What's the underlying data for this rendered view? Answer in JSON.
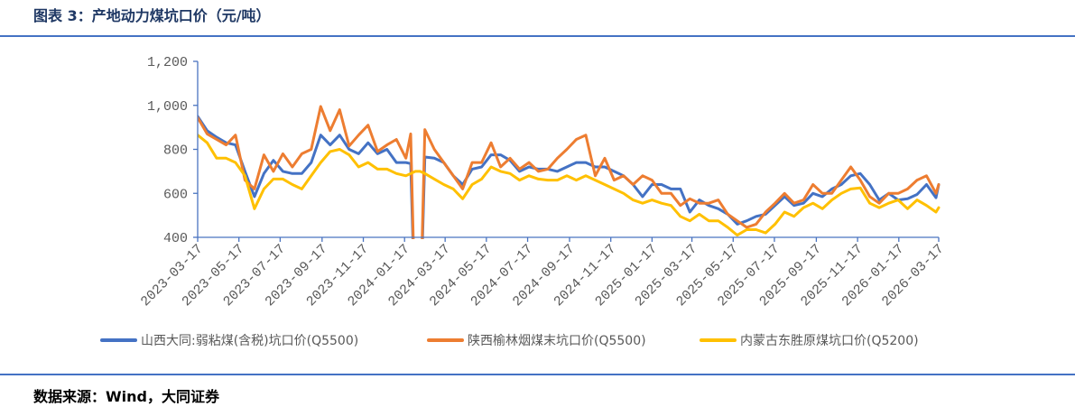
{
  "footer": {
    "source": "数据来源：Wind，大同证券"
  },
  "colors": {
    "title": "#1f3864",
    "rule": "#4472c4",
    "axis": "#4a74c0",
    "tick_text": "#595959"
  },
  "chart_data": {
    "type": "line",
    "title": "图表 3：产地动力煤坑口价（元/吨）",
    "xlabel": "",
    "ylabel": "",
    "ylim": [
      400,
      1200
    ],
    "y_ticks": [
      400,
      600,
      800,
      1000,
      1200
    ],
    "y_tick_labels": [
      "400",
      "600",
      "800",
      "1,000",
      "1,200"
    ],
    "x_range": [
      "2023-03-17",
      "2026-03-17"
    ],
    "x_tick_labels": [
      "2023-03-17",
      "2023-05-17",
      "2023-07-17",
      "2023-09-17",
      "2023-11-17",
      "2024-01-17",
      "2024-03-17",
      "2024-05-17",
      "2024-07-17",
      "2024-09-17",
      "2024-11-17",
      "2025-01-17",
      "2025-03-17",
      "2025-05-17",
      "2025-07-17",
      "2025-09-17",
      "2025-11-17",
      "2026-01-17",
      "2026-03-17"
    ],
    "grid": false,
    "legend_position": "bottom",
    "x": [
      "2023-03-17",
      "2023-03-31",
      "2023-04-14",
      "2023-04-28",
      "2023-05-12",
      "2023-05-26",
      "2023-06-09",
      "2023-06-23",
      "2023-07-07",
      "2023-07-21",
      "2023-08-04",
      "2023-08-18",
      "2023-09-01",
      "2023-09-15",
      "2023-09-29",
      "2023-10-13",
      "2023-10-27",
      "2023-11-10",
      "2023-11-24",
      "2023-12-08",
      "2023-12-22",
      "2024-01-05",
      "2024-01-19",
      "2024-01-26",
      "2024-02-02",
      "2024-02-09",
      "2024-02-16",
      "2024-03-01",
      "2024-03-15",
      "2024-03-29",
      "2024-04-12",
      "2024-04-26",
      "2024-05-10",
      "2024-05-24",
      "2024-06-07",
      "2024-06-21",
      "2024-07-05",
      "2024-07-19",
      "2024-08-02",
      "2024-08-16",
      "2024-08-30",
      "2024-09-13",
      "2024-09-27",
      "2024-10-11",
      "2024-10-25",
      "2024-11-08",
      "2024-11-22",
      "2024-12-06",
      "2024-12-20",
      "2025-01-03",
      "2025-01-17",
      "2025-01-31",
      "2025-02-14",
      "2025-02-28",
      "2025-03-14",
      "2025-03-28",
      "2025-04-11",
      "2025-04-25",
      "2025-05-09",
      "2025-05-23",
      "2025-06-06",
      "2025-06-20",
      "2025-07-04",
      "2025-07-18",
      "2025-08-01",
      "2025-08-15",
      "2025-08-29",
      "2025-09-12",
      "2025-09-26",
      "2025-10-10",
      "2025-10-24",
      "2025-11-07",
      "2025-11-21",
      "2025-12-05",
      "2025-12-19",
      "2026-01-02",
      "2026-01-16",
      "2026-01-30",
      "2026-02-13",
      "2026-02-27",
      "2026-03-13",
      "2026-03-17"
    ],
    "series": [
      {
        "name": "山西大同:弱粘煤(含税)坑口价(Q5500)",
        "color": "#4472c4",
        "values": [
          950,
          885,
          855,
          830,
          820,
          700,
          585,
          690,
          750,
          700,
          690,
          690,
          740,
          865,
          820,
          865,
          800,
          780,
          830,
          780,
          800,
          740,
          740,
          735,
          0,
          0,
          765,
          760,
          740,
          680,
          640,
          710,
          720,
          775,
          775,
          750,
          700,
          720,
          710,
          710,
          700,
          720,
          740,
          740,
          720,
          720,
          700,
          680,
          640,
          585,
          640,
          640,
          620,
          620,
          515,
          570,
          545,
          530,
          505,
          460,
          475,
          495,
          505,
          545,
          585,
          545,
          555,
          600,
          585,
          620,
          640,
          680,
          690,
          640,
          570,
          600,
          570,
          575,
          595,
          640,
          580,
          640
        ]
      },
      {
        "name": "陕西榆林烟煤末坑口价(Q5500)",
        "color": "#ed7d31",
        "values": [
          945,
          870,
          845,
          820,
          865,
          660,
          620,
          775,
          700,
          780,
          720,
          780,
          800,
          995,
          885,
          980,
          815,
          865,
          910,
          790,
          820,
          845,
          760,
          870,
          0,
          0,
          890,
          800,
          740,
          680,
          620,
          740,
          740,
          830,
          720,
          760,
          710,
          740,
          700,
          710,
          760,
          800,
          845,
          865,
          680,
          760,
          660,
          680,
          640,
          680,
          660,
          600,
          600,
          545,
          575,
          555,
          555,
          570,
          505,
          475,
          445,
          460,
          515,
          555,
          600,
          555,
          570,
          640,
          600,
          600,
          660,
          720,
          660,
          585,
          555,
          600,
          600,
          620,
          660,
          680,
          600,
          640
        ]
      },
      {
        "name": "内蒙古东胜原煤坑口价(Q5200)",
        "color": "#ffc000",
        "values": [
          865,
          830,
          760,
          760,
          740,
          680,
          530,
          620,
          665,
          665,
          640,
          620,
          680,
          740,
          790,
          800,
          775,
          720,
          740,
          710,
          710,
          690,
          680,
          690,
          700,
          700,
          690,
          665,
          640,
          620,
          575,
          640,
          665,
          720,
          700,
          690,
          660,
          680,
          665,
          660,
          660,
          680,
          660,
          680,
          660,
          640,
          620,
          600,
          570,
          555,
          570,
          555,
          545,
          495,
          475,
          505,
          475,
          475,
          445,
          410,
          435,
          435,
          420,
          460,
          515,
          495,
          535,
          555,
          530,
          570,
          600,
          620,
          625,
          555,
          535,
          555,
          570,
          530,
          570,
          545,
          515,
          535
        ]
      }
    ]
  }
}
